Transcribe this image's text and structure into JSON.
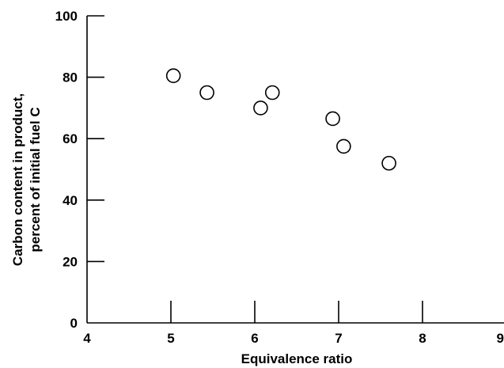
{
  "chart_data": {
    "type": "scatter",
    "xlabel": "Equivalence ratio",
    "ylabel_lines": [
      "Carbon content in product,",
      "percent of initial fuel C"
    ],
    "xlim": [
      4,
      9
    ],
    "ylim": [
      0,
      100
    ],
    "x_ticks": [
      4,
      5,
      6,
      7,
      8,
      9
    ],
    "y_ticks": [
      0,
      20,
      40,
      60,
      80,
      100
    ],
    "x_tick_labels": [
      "4",
      "5",
      "6",
      "7",
      "8",
      "9"
    ],
    "y_tick_labels": [
      "0",
      "20",
      "40",
      "60",
      "80",
      "100"
    ],
    "grid": false,
    "marker": "open-circle",
    "points": [
      {
        "x": 5.03,
        "y": 80.5
      },
      {
        "x": 5.43,
        "y": 75.0
      },
      {
        "x": 6.07,
        "y": 70.0
      },
      {
        "x": 6.21,
        "y": 75.0
      },
      {
        "x": 6.93,
        "y": 66.5
      },
      {
        "x": 7.06,
        "y": 57.5
      },
      {
        "x": 7.6,
        "y": 52.0
      }
    ]
  }
}
